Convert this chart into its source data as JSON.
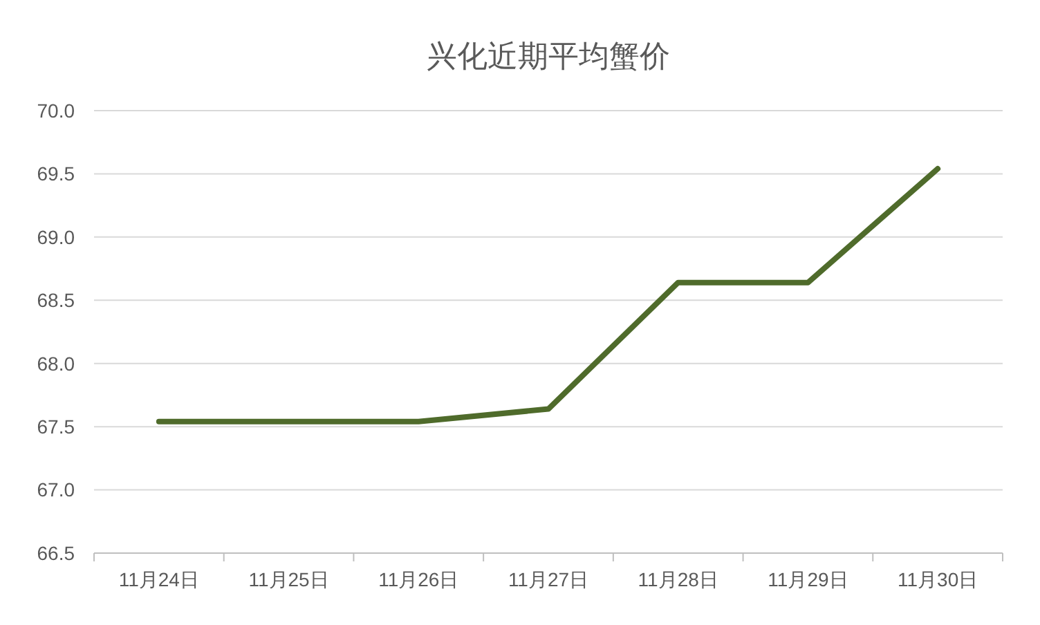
{
  "chart_data": {
    "type": "line",
    "title": "兴化近期平均蟹价",
    "categories": [
      "11月24日",
      "11月25日",
      "11月26日",
      "11月27日",
      "11月28日",
      "11月29日",
      "11月30日"
    ],
    "series": [
      {
        "color": "#4f6b2b",
        "values": [
          67.54,
          67.54,
          67.54,
          67.64,
          68.64,
          68.64,
          69.54
        ]
      }
    ],
    "ylim": [
      66.5,
      70.0
    ],
    "yticks": [
      {
        "value": 66.5,
        "label": "66.5"
      },
      {
        "value": 67,
        "label": "67.0"
      },
      {
        "value": 67.5,
        "label": "67.5"
      },
      {
        "value": 68,
        "label": "68.0"
      },
      {
        "value": 68.5,
        "label": "68.5"
      },
      {
        "value": 69,
        "label": "69.0"
      },
      {
        "value": 69.5,
        "label": "69.5"
      },
      {
        "value": 70,
        "label": "70.0"
      }
    ],
    "grid": "y",
    "marker": "none",
    "line_style": "solid"
  }
}
